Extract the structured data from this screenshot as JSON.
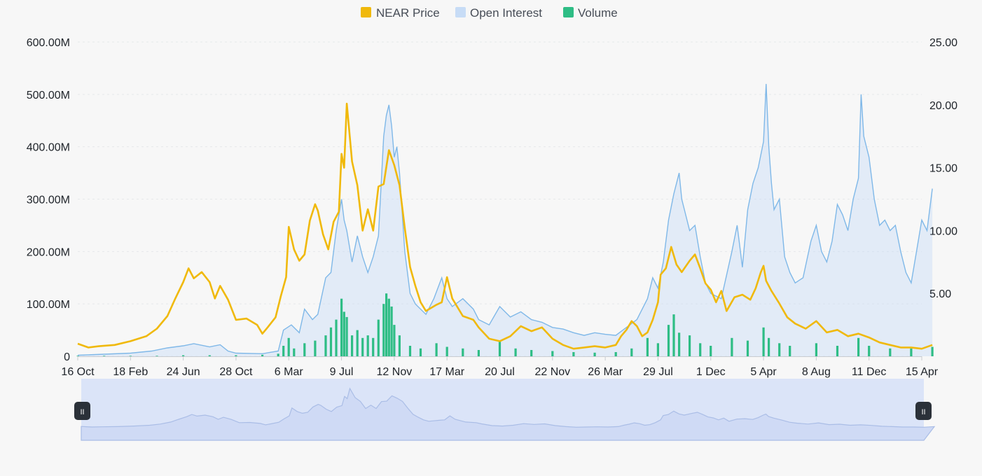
{
  "colors": {
    "price": "#F0B90B",
    "open_interest_line": "#7fb8e8",
    "open_interest_fill": "#c7dcf6",
    "volume": "#2ebd85",
    "navigator_fill": "#dbe4f8",
    "navigator_line": "#aabde6",
    "handle": "#2b3139"
  },
  "chart_data": {
    "type": "line",
    "title": "",
    "legend": {
      "placement": "top-center",
      "items": [
        {
          "key": "price",
          "label": "NEAR Price",
          "color": "#F0B90B"
        },
        {
          "key": "open_interest",
          "label": "Open Interest",
          "color": "#c7dcf6"
        },
        {
          "key": "volume",
          "label": "Volume",
          "color": "#2ebd85"
        }
      ]
    },
    "x_ticks": [
      "16 Oct",
      "18 Feb",
      "24 Jun",
      "28 Oct",
      "6 Mar",
      "9 Jul",
      "12 Nov",
      "17 Mar",
      "20 Jul",
      "22 Nov",
      "26 Mar",
      "29 Jul",
      "1 Dec",
      "5 Apr",
      "8 Aug",
      "11 Dec",
      "15 Apr"
    ],
    "y_left": {
      "ticks": [
        "0",
        "100.00M",
        "200.00M",
        "300.00M",
        "400.00M",
        "500.00M",
        "600.00M"
      ],
      "range": [
        0,
        600
      ]
    },
    "y_right": {
      "ticks": [
        "5.00",
        "10.00",
        "15.00",
        "20.00",
        "25.00"
      ],
      "range": [
        0,
        25
      ]
    },
    "grid": true,
    "navigator": true,
    "series": [
      {
        "name": "NEAR Price",
        "axis": "right",
        "style": "line",
        "points": [
          [
            0,
            1.0
          ],
          [
            0.2,
            0.7
          ],
          [
            0.4,
            0.8
          ],
          [
            0.7,
            0.9
          ],
          [
            1.0,
            1.2
          ],
          [
            1.3,
            1.6
          ],
          [
            1.5,
            2.2
          ],
          [
            1.7,
            3.2
          ],
          [
            1.85,
            4.6
          ],
          [
            2.0,
            5.9
          ],
          [
            2.1,
            7.0
          ],
          [
            2.2,
            6.2
          ],
          [
            2.35,
            6.7
          ],
          [
            2.5,
            5.9
          ],
          [
            2.6,
            4.6
          ],
          [
            2.7,
            5.6
          ],
          [
            2.85,
            4.5
          ],
          [
            3.0,
            2.9
          ],
          [
            3.2,
            3.0
          ],
          [
            3.4,
            2.5
          ],
          [
            3.5,
            1.8
          ],
          [
            3.6,
            2.3
          ],
          [
            3.75,
            3.1
          ],
          [
            3.85,
            4.8
          ],
          [
            3.95,
            6.3
          ],
          [
            4.0,
            10.3
          ],
          [
            4.1,
            8.5
          ],
          [
            4.2,
            7.6
          ],
          [
            4.3,
            8.1
          ],
          [
            4.4,
            10.8
          ],
          [
            4.5,
            12.1
          ],
          [
            4.55,
            11.6
          ],
          [
            4.65,
            9.7
          ],
          [
            4.75,
            8.5
          ],
          [
            4.85,
            10.7
          ],
          [
            4.95,
            11.5
          ],
          [
            5.0,
            16.1
          ],
          [
            5.05,
            15.0
          ],
          [
            5.1,
            20.1
          ],
          [
            5.2,
            15.5
          ],
          [
            5.3,
            13.6
          ],
          [
            5.4,
            10.0
          ],
          [
            5.5,
            11.7
          ],
          [
            5.6,
            10.0
          ],
          [
            5.7,
            13.5
          ],
          [
            5.8,
            13.7
          ],
          [
            5.9,
            16.4
          ],
          [
            6.0,
            15.2
          ],
          [
            6.1,
            13.6
          ],
          [
            6.2,
            10.2
          ],
          [
            6.3,
            7.1
          ],
          [
            6.4,
            5.6
          ],
          [
            6.5,
            4.3
          ],
          [
            6.6,
            3.6
          ],
          [
            6.8,
            4.1
          ],
          [
            6.9,
            4.3
          ],
          [
            7.0,
            6.3
          ],
          [
            7.1,
            4.6
          ],
          [
            7.3,
            3.2
          ],
          [
            7.5,
            2.9
          ],
          [
            7.6,
            2.3
          ],
          [
            7.8,
            1.4
          ],
          [
            8.0,
            1.2
          ],
          [
            8.2,
            1.6
          ],
          [
            8.4,
            2.4
          ],
          [
            8.6,
            2.0
          ],
          [
            8.8,
            2.3
          ],
          [
            9.0,
            1.4
          ],
          [
            9.2,
            0.9
          ],
          [
            9.4,
            0.6
          ],
          [
            9.6,
            0.7
          ],
          [
            9.8,
            0.8
          ],
          [
            10.0,
            0.7
          ],
          [
            10.2,
            0.9
          ],
          [
            10.3,
            1.6
          ],
          [
            10.4,
            2.1
          ],
          [
            10.5,
            2.8
          ],
          [
            10.6,
            2.4
          ],
          [
            10.7,
            1.6
          ],
          [
            10.8,
            1.9
          ],
          [
            10.9,
            2.9
          ],
          [
            11.0,
            4.3
          ],
          [
            11.05,
            6.5
          ],
          [
            11.15,
            7.0
          ],
          [
            11.25,
            8.7
          ],
          [
            11.35,
            7.3
          ],
          [
            11.45,
            6.7
          ],
          [
            11.6,
            7.6
          ],
          [
            11.7,
            8.1
          ],
          [
            11.8,
            7.0
          ],
          [
            11.9,
            5.8
          ],
          [
            12.0,
            5.3
          ],
          [
            12.1,
            4.3
          ],
          [
            12.2,
            5.2
          ],
          [
            12.3,
            3.6
          ],
          [
            12.45,
            4.7
          ],
          [
            12.6,
            4.9
          ],
          [
            12.75,
            4.5
          ],
          [
            12.85,
            5.4
          ],
          [
            12.95,
            6.7
          ],
          [
            13.0,
            7.2
          ],
          [
            13.05,
            6.0
          ],
          [
            13.15,
            5.2
          ],
          [
            13.3,
            4.2
          ],
          [
            13.45,
            3.1
          ],
          [
            13.6,
            2.6
          ],
          [
            13.8,
            2.2
          ],
          [
            14.0,
            2.8
          ],
          [
            14.2,
            1.9
          ],
          [
            14.4,
            2.1
          ],
          [
            14.6,
            1.6
          ],
          [
            14.8,
            1.8
          ],
          [
            15.0,
            1.5
          ],
          [
            15.2,
            1.1
          ],
          [
            15.4,
            0.9
          ],
          [
            15.6,
            0.7
          ],
          [
            15.8,
            0.7
          ],
          [
            16.0,
            0.6
          ],
          [
            16.2,
            0.9
          ]
        ]
      },
      {
        "name": "Open Interest",
        "axis": "left",
        "style": "area",
        "points": [
          [
            0,
            2
          ],
          [
            0.5,
            4
          ],
          [
            1.0,
            6
          ],
          [
            1.4,
            10
          ],
          [
            1.7,
            16
          ],
          [
            2.0,
            20
          ],
          [
            2.2,
            24
          ],
          [
            2.5,
            18
          ],
          [
            2.7,
            22
          ],
          [
            2.85,
            10
          ],
          [
            3.0,
            6
          ],
          [
            3.5,
            5
          ],
          [
            3.8,
            10
          ],
          [
            3.9,
            50
          ],
          [
            4.05,
            60
          ],
          [
            4.2,
            45
          ],
          [
            4.3,
            90
          ],
          [
            4.45,
            70
          ],
          [
            4.55,
            80
          ],
          [
            4.7,
            150
          ],
          [
            4.8,
            160
          ],
          [
            4.9,
            240
          ],
          [
            5.0,
            300
          ],
          [
            5.05,
            260
          ],
          [
            5.1,
            240
          ],
          [
            5.2,
            180
          ],
          [
            5.3,
            230
          ],
          [
            5.4,
            190
          ],
          [
            5.5,
            160
          ],
          [
            5.6,
            190
          ],
          [
            5.7,
            230
          ],
          [
            5.8,
            420
          ],
          [
            5.85,
            460
          ],
          [
            5.9,
            480
          ],
          [
            5.95,
            440
          ],
          [
            6.0,
            380
          ],
          [
            6.05,
            400
          ],
          [
            6.1,
            350
          ],
          [
            6.2,
            200
          ],
          [
            6.3,
            120
          ],
          [
            6.4,
            100
          ],
          [
            6.5,
            90
          ],
          [
            6.6,
            80
          ],
          [
            6.75,
            110
          ],
          [
            6.9,
            150
          ],
          [
            7.0,
            110
          ],
          [
            7.1,
            95
          ],
          [
            7.3,
            110
          ],
          [
            7.5,
            90
          ],
          [
            7.6,
            70
          ],
          [
            7.8,
            60
          ],
          [
            8.0,
            95
          ],
          [
            8.2,
            75
          ],
          [
            8.4,
            85
          ],
          [
            8.6,
            70
          ],
          [
            8.8,
            65
          ],
          [
            9.0,
            55
          ],
          [
            9.2,
            52
          ],
          [
            9.4,
            45
          ],
          [
            9.6,
            40
          ],
          [
            9.8,
            45
          ],
          [
            10.0,
            42
          ],
          [
            10.2,
            40
          ],
          [
            10.4,
            55
          ],
          [
            10.6,
            70
          ],
          [
            10.8,
            110
          ],
          [
            10.9,
            150
          ],
          [
            11.0,
            130
          ],
          [
            11.1,
            180
          ],
          [
            11.2,
            260
          ],
          [
            11.3,
            310
          ],
          [
            11.4,
            350
          ],
          [
            11.45,
            300
          ],
          [
            11.5,
            280
          ],
          [
            11.6,
            240
          ],
          [
            11.7,
            250
          ],
          [
            11.8,
            190
          ],
          [
            11.9,
            140
          ],
          [
            12.0,
            120
          ],
          [
            12.2,
            110
          ],
          [
            12.4,
            200
          ],
          [
            12.5,
            250
          ],
          [
            12.55,
            210
          ],
          [
            12.6,
            170
          ],
          [
            12.7,
            280
          ],
          [
            12.8,
            330
          ],
          [
            12.9,
            360
          ],
          [
            13.0,
            410
          ],
          [
            13.05,
            520
          ],
          [
            13.1,
            400
          ],
          [
            13.15,
            330
          ],
          [
            13.2,
            280
          ],
          [
            13.3,
            300
          ],
          [
            13.4,
            190
          ],
          [
            13.5,
            160
          ],
          [
            13.6,
            140
          ],
          [
            13.75,
            150
          ],
          [
            13.9,
            220
          ],
          [
            14.0,
            250
          ],
          [
            14.1,
            200
          ],
          [
            14.2,
            180
          ],
          [
            14.3,
            220
          ],
          [
            14.4,
            290
          ],
          [
            14.5,
            270
          ],
          [
            14.6,
            240
          ],
          [
            14.7,
            300
          ],
          [
            14.8,
            340
          ],
          [
            14.85,
            500
          ],
          [
            14.9,
            420
          ],
          [
            15.0,
            380
          ],
          [
            15.1,
            300
          ],
          [
            15.2,
            250
          ],
          [
            15.3,
            260
          ],
          [
            15.4,
            240
          ],
          [
            15.5,
            250
          ],
          [
            15.6,
            200
          ],
          [
            15.7,
            160
          ],
          [
            15.8,
            140
          ],
          [
            15.9,
            200
          ],
          [
            16.0,
            260
          ],
          [
            16.1,
            240
          ],
          [
            16.2,
            320
          ]
        ]
      },
      {
        "name": "Volume",
        "axis": "left",
        "style": "bar",
        "points": [
          [
            0,
            1
          ],
          [
            0.5,
            1
          ],
          [
            1.0,
            1
          ],
          [
            1.5,
            1
          ],
          [
            2.0,
            2
          ],
          [
            2.5,
            2
          ],
          [
            3.0,
            2
          ],
          [
            3.5,
            3
          ],
          [
            3.8,
            5
          ],
          [
            3.9,
            20
          ],
          [
            4.0,
            35
          ],
          [
            4.1,
            15
          ],
          [
            4.3,
            25
          ],
          [
            4.5,
            30
          ],
          [
            4.7,
            40
          ],
          [
            4.8,
            55
          ],
          [
            4.9,
            70
          ],
          [
            5.0,
            110
          ],
          [
            5.05,
            85
          ],
          [
            5.1,
            75
          ],
          [
            5.2,
            40
          ],
          [
            5.3,
            50
          ],
          [
            5.4,
            35
          ],
          [
            5.5,
            40
          ],
          [
            5.6,
            35
          ],
          [
            5.7,
            70
          ],
          [
            5.8,
            100
          ],
          [
            5.85,
            120
          ],
          [
            5.9,
            110
          ],
          [
            5.95,
            95
          ],
          [
            6.0,
            60
          ],
          [
            6.1,
            40
          ],
          [
            6.3,
            20
          ],
          [
            6.5,
            15
          ],
          [
            6.8,
            25
          ],
          [
            7.0,
            18
          ],
          [
            7.3,
            15
          ],
          [
            7.6,
            12
          ],
          [
            8.0,
            30
          ],
          [
            8.3,
            15
          ],
          [
            8.6,
            12
          ],
          [
            9.0,
            10
          ],
          [
            9.4,
            8
          ],
          [
            9.8,
            7
          ],
          [
            10.2,
            8
          ],
          [
            10.5,
            15
          ],
          [
            10.8,
            35
          ],
          [
            11.0,
            25
          ],
          [
            11.2,
            60
          ],
          [
            11.3,
            80
          ],
          [
            11.4,
            45
          ],
          [
            11.6,
            40
          ],
          [
            11.8,
            25
          ],
          [
            12.0,
            20
          ],
          [
            12.4,
            35
          ],
          [
            12.7,
            30
          ],
          [
            13.0,
            55
          ],
          [
            13.1,
            35
          ],
          [
            13.3,
            25
          ],
          [
            13.5,
            20
          ],
          [
            14.0,
            25
          ],
          [
            14.4,
            20
          ],
          [
            14.8,
            35
          ],
          [
            15.0,
            20
          ],
          [
            15.4,
            15
          ],
          [
            15.8,
            15
          ],
          [
            16.2,
            18
          ]
        ]
      }
    ]
  }
}
